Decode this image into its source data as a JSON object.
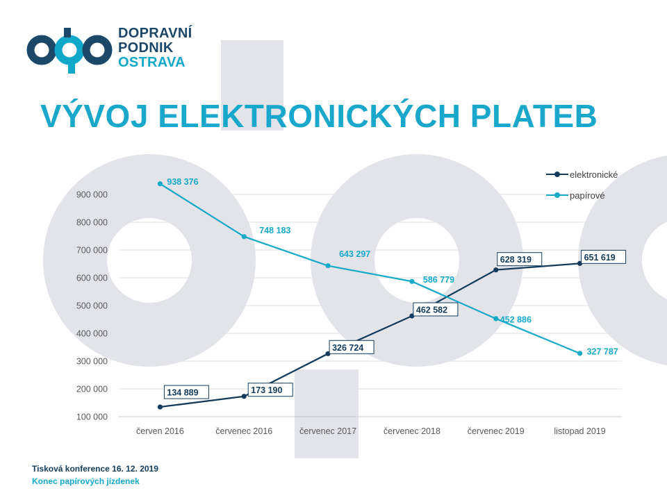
{
  "brand": {
    "name_lines": [
      "DOPRAVNÍ",
      "PODNIK",
      "OSTRAVA"
    ],
    "colors": {
      "navy": "#1b4769",
      "cyan": "#11a8c9",
      "watermark": "#e3e4ea"
    }
  },
  "slide": {
    "title": "VÝVOJ ELEKTRONICKÝCH PLATEB",
    "title_color": "#1aa7cc"
  },
  "footer": {
    "line1": "Tisková konference 16. 12. 2019",
    "line2": "Konec papírových jízdenek"
  },
  "chart_data": {
    "type": "line",
    "title": "",
    "xlabel": "",
    "ylabel": "",
    "categories": [
      "červen 2016",
      "červenec 2016",
      "červenec 2017",
      "červenec 2018",
      "červenec 2019",
      "listopad 2019"
    ],
    "series": [
      {
        "name": "elektronické",
        "color": "#123b5c",
        "values": [
          134889,
          173190,
          326724,
          462582,
          628319,
          651619
        ],
        "labels": [
          "134 889",
          "173 190",
          "326 724",
          "462 582",
          "628 319",
          "651 619"
        ],
        "label_style": "boxed"
      },
      {
        "name": "papírové",
        "color": "#17a9c9",
        "values": [
          938376,
          748183,
          643297,
          586779,
          452886,
          327787
        ],
        "labels": [
          "938 376",
          "748 183",
          "643 297",
          "586 779",
          "452 886",
          "327 787"
        ],
        "label_style": "plain"
      }
    ],
    "yticks": [
      100000,
      200000,
      300000,
      400000,
      500000,
      600000,
      700000,
      800000,
      900000
    ],
    "ytick_labels": [
      "100 000",
      "200 000",
      "300 000",
      "400 000",
      "500 000",
      "600 000",
      "700 000",
      "800 000",
      "900 000"
    ],
    "ylim": [
      100000,
      950000
    ],
    "grid": true,
    "legend": {
      "position": "top-right"
    }
  }
}
